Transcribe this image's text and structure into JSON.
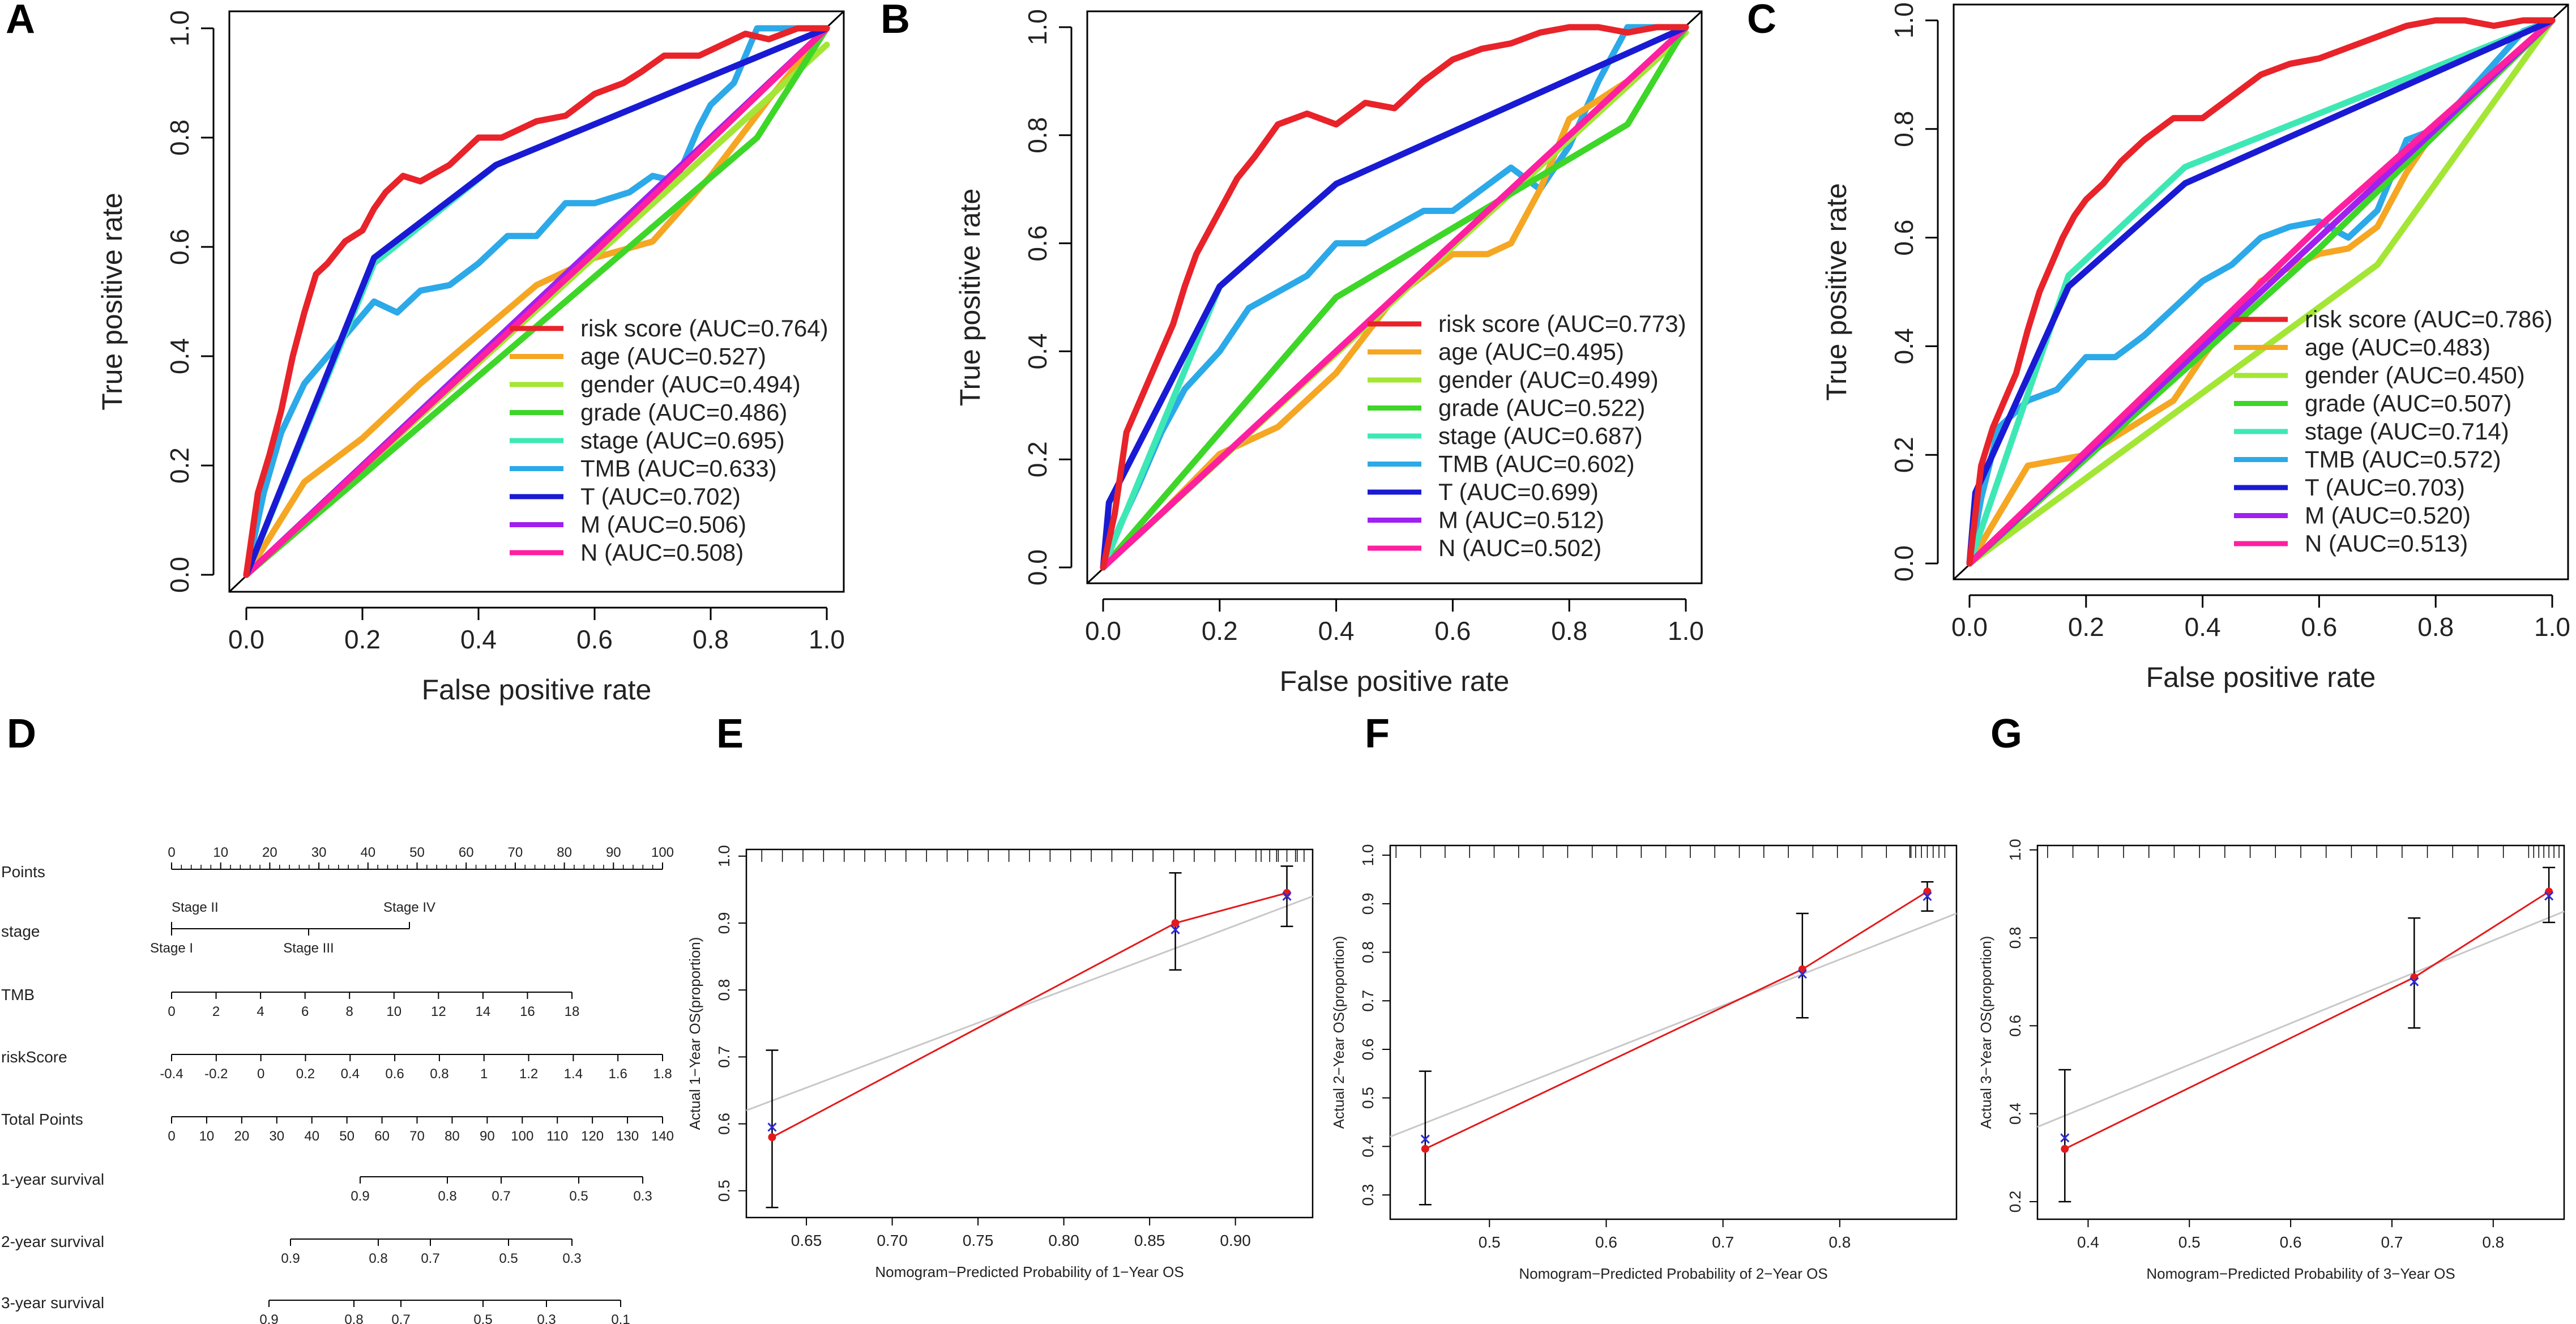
{
  "panel_letters": [
    "A",
    "B",
    "C",
    "D",
    "E",
    "F",
    "G"
  ],
  "colors": {
    "risk score": "#e8232a",
    "age": "#f5a623",
    "gender": "#a3e635",
    "grade": "#3ed628",
    "stage": "#3ee8b5",
    "TMB": "#2ca9e8",
    "T": "#1a1ad4",
    "M": "#a020f0",
    "N": "#ff1fa0",
    "diag": "#000000",
    "cal_red": "#e31a1c",
    "cal_gray": "#c8c8c8",
    "cal_blue": "#2b2bd6"
  },
  "chart_data": [
    {
      "type": "line",
      "panel": "A",
      "xlabel": "False positive rate",
      "ylabel": "True positive rate",
      "xlim": [
        0,
        1
      ],
      "ylim": [
        0,
        1
      ],
      "xticks": [
        "0.0",
        "0.2",
        "0.4",
        "0.6",
        "0.8",
        "1.0"
      ],
      "yticks": [
        "0.0",
        "0.2",
        "0.4",
        "0.6",
        "0.8",
        "1.0"
      ],
      "legend": [
        "risk score (AUC=0.764)",
        "age (AUC=0.527)",
        "gender (AUC=0.494)",
        "grade (AUC=0.486)",
        "stage (AUC=0.695)",
        "TMB (AUC=0.633)",
        "T (AUC=0.702)",
        "M (AUC=0.506)",
        "N (AUC=0.508)"
      ],
      "series": [
        {
          "name": "TMB",
          "x": [
            0,
            0.03,
            0.06,
            0.1,
            0.14,
            0.18,
            0.22,
            0.26,
            0.3,
            0.35,
            0.4,
            0.45,
            0.5,
            0.55,
            0.6,
            0.66,
            0.7,
            0.74,
            0.78,
            0.8,
            0.84,
            0.88,
            0.92,
            0.96,
            1
          ],
          "y": [
            0,
            0.15,
            0.26,
            0.35,
            0.4,
            0.45,
            0.5,
            0.48,
            0.52,
            0.53,
            0.57,
            0.62,
            0.62,
            0.68,
            0.68,
            0.7,
            0.73,
            0.72,
            0.82,
            0.86,
            0.9,
            1,
            1,
            1,
            1
          ]
        },
        {
          "name": "age",
          "x": [
            0,
            0.1,
            0.2,
            0.3,
            0.4,
            0.5,
            0.6,
            0.7,
            0.8,
            0.9,
            1
          ],
          "y": [
            0,
            0.17,
            0.25,
            0.35,
            0.44,
            0.53,
            0.58,
            0.61,
            0.73,
            0.87,
            1
          ]
        },
        {
          "name": "gender",
          "x": [
            0,
            1
          ],
          "y": [
            0,
            0.97
          ]
        },
        {
          "name": "grade",
          "x": [
            0,
            0.88,
            1
          ],
          "y": [
            0,
            0.8,
            1
          ]
        },
        {
          "name": "stage",
          "x": [
            0,
            0.22,
            0.43,
            1
          ],
          "y": [
            0,
            0.57,
            0.75,
            1
          ]
        },
        {
          "name": "M",
          "x": [
            0,
            1
          ],
          "y": [
            0,
            1
          ]
        },
        {
          "name": "N",
          "x": [
            0,
            0.6,
            1
          ],
          "y": [
            0,
            0.59,
            1
          ]
        },
        {
          "name": "T",
          "x": [
            0,
            0.22,
            0.43,
            1
          ],
          "y": [
            0,
            0.58,
            0.75,
            1
          ]
        },
        {
          "name": "risk score",
          "x": [
            0,
            0.02,
            0.04,
            0.06,
            0.08,
            0.1,
            0.12,
            0.14,
            0.17,
            0.2,
            0.22,
            0.24,
            0.27,
            0.3,
            0.35,
            0.4,
            0.44,
            0.5,
            0.55,
            0.6,
            0.65,
            0.68,
            0.72,
            0.78,
            0.82,
            0.86,
            0.9,
            0.95,
            1
          ],
          "y": [
            0,
            0.15,
            0.22,
            0.3,
            0.4,
            0.48,
            0.55,
            0.57,
            0.61,
            0.63,
            0.67,
            0.7,
            0.73,
            0.72,
            0.75,
            0.8,
            0.8,
            0.83,
            0.84,
            0.88,
            0.9,
            0.92,
            0.95,
            0.95,
            0.97,
            0.99,
            0.98,
            1,
            1
          ]
        }
      ]
    },
    {
      "type": "line",
      "panel": "B",
      "xlabel": "False positive rate",
      "ylabel": "True positive rate",
      "xlim": [
        0,
        1
      ],
      "ylim": [
        0,
        1
      ],
      "xticks": [
        "0.0",
        "0.2",
        "0.4",
        "0.6",
        "0.8",
        "1.0"
      ],
      "yticks": [
        "0.0",
        "0.2",
        "0.4",
        "0.6",
        "0.8",
        "1.0"
      ],
      "legend": [
        "risk score (AUC=0.773)",
        "age (AUC=0.495)",
        "gender (AUC=0.499)",
        "grade (AUC=0.522)",
        "stage (AUC=0.687)",
        "TMB (AUC=0.602)",
        "T (AUC=0.699)",
        "M (AUC=0.512)",
        "N (AUC=0.502)"
      ],
      "series": [
        {
          "name": "TMB",
          "x": [
            0,
            0.03,
            0.06,
            0.1,
            0.14,
            0.2,
            0.25,
            0.3,
            0.35,
            0.4,
            0.45,
            0.5,
            0.55,
            0.6,
            0.65,
            0.7,
            0.75,
            0.8,
            0.85,
            0.9,
            0.95,
            1
          ],
          "y": [
            0,
            0.08,
            0.15,
            0.25,
            0.33,
            0.4,
            0.48,
            0.51,
            0.54,
            0.6,
            0.6,
            0.63,
            0.66,
            0.66,
            0.7,
            0.74,
            0.7,
            0.78,
            0.9,
            1,
            1,
            1
          ]
        },
        {
          "name": "age",
          "x": [
            0,
            0.1,
            0.2,
            0.3,
            0.4,
            0.5,
            0.6,
            0.66,
            0.7,
            0.75,
            0.8,
            0.9,
            1
          ],
          "y": [
            0,
            0.1,
            0.21,
            0.26,
            0.36,
            0.5,
            0.58,
            0.58,
            0.6,
            0.7,
            0.83,
            0.9,
            1
          ]
        },
        {
          "name": "gender",
          "x": [
            0,
            1
          ],
          "y": [
            0,
            0.99
          ]
        },
        {
          "name": "grade",
          "x": [
            0,
            0.4,
            0.9,
            1
          ],
          "y": [
            0,
            0.5,
            0.82,
            1
          ]
        },
        {
          "name": "stage",
          "x": [
            0,
            0.2,
            0.4,
            1
          ],
          "y": [
            0,
            0.52,
            0.71,
            1
          ]
        },
        {
          "name": "M",
          "x": [
            0,
            1
          ],
          "y": [
            0,
            1
          ]
        },
        {
          "name": "N",
          "x": [
            0,
            0.6,
            1
          ],
          "y": [
            0,
            0.6,
            1
          ]
        },
        {
          "name": "T",
          "x": [
            0,
            0.01,
            0.2,
            0.4,
            1
          ],
          "y": [
            0,
            0.12,
            0.52,
            0.71,
            1
          ]
        },
        {
          "name": "risk score",
          "x": [
            0,
            0.02,
            0.04,
            0.06,
            0.08,
            0.1,
            0.12,
            0.14,
            0.16,
            0.18,
            0.2,
            0.23,
            0.26,
            0.3,
            0.35,
            0.4,
            0.45,
            0.5,
            0.55,
            0.6,
            0.65,
            0.7,
            0.75,
            0.8,
            0.85,
            0.9,
            0.95,
            1
          ],
          "y": [
            0,
            0.1,
            0.25,
            0.3,
            0.35,
            0.4,
            0.45,
            0.52,
            0.58,
            0.62,
            0.66,
            0.72,
            0.76,
            0.82,
            0.84,
            0.82,
            0.86,
            0.85,
            0.9,
            0.94,
            0.96,
            0.97,
            0.99,
            1,
            1,
            0.99,
            1,
            1
          ]
        }
      ]
    },
    {
      "type": "line",
      "panel": "C",
      "xlabel": "False positive rate",
      "ylabel": "True positive rate",
      "xlim": [
        0,
        1
      ],
      "ylim": [
        0,
        1
      ],
      "xticks": [
        "0.0",
        "0.2",
        "0.4",
        "0.6",
        "0.8",
        "1.0"
      ],
      "yticks": [
        "0.0",
        "0.2",
        "0.4",
        "0.6",
        "0.8",
        "1.0"
      ],
      "legend": [
        "risk score (AUC=0.786)",
        "age (AUC=0.483)",
        "gender (AUC=0.450)",
        "grade (AUC=0.507)",
        "stage (AUC=0.714)",
        "TMB (AUC=0.572)",
        "T (AUC=0.703)",
        "M (AUC=0.520)",
        "N (AUC=0.513)"
      ],
      "series": [
        {
          "name": "TMB",
          "x": [
            0,
            0.02,
            0.05,
            0.1,
            0.15,
            0.2,
            0.25,
            0.3,
            0.35,
            0.4,
            0.45,
            0.5,
            0.55,
            0.6,
            0.65,
            0.7,
            0.75,
            0.8,
            0.85,
            0.9,
            0.95,
            1
          ],
          "y": [
            0,
            0.12,
            0.25,
            0.3,
            0.32,
            0.38,
            0.38,
            0.42,
            0.47,
            0.52,
            0.55,
            0.6,
            0.62,
            0.63,
            0.6,
            0.65,
            0.78,
            0.8,
            0.86,
            0.92,
            0.98,
            1
          ]
        },
        {
          "name": "age",
          "x": [
            0,
            0.1,
            0.2,
            0.35,
            0.4,
            0.5,
            0.6,
            0.65,
            0.7,
            0.75,
            0.8,
            0.9,
            1
          ],
          "y": [
            0,
            0.18,
            0.2,
            0.3,
            0.38,
            0.52,
            0.57,
            0.58,
            0.62,
            0.72,
            0.8,
            0.9,
            1
          ]
        },
        {
          "name": "gender",
          "x": [
            0,
            0.7,
            1
          ],
          "y": [
            0,
            0.55,
            1
          ]
        },
        {
          "name": "grade",
          "x": [
            0,
            0.6,
            1
          ],
          "y": [
            0,
            0.58,
            1
          ]
        },
        {
          "name": "stage",
          "x": [
            0,
            0.17,
            0.37,
            1
          ],
          "y": [
            0,
            0.53,
            0.73,
            1
          ]
        },
        {
          "name": "M",
          "x": [
            0,
            1
          ],
          "y": [
            0,
            1
          ]
        },
        {
          "name": "N",
          "x": [
            0,
            0.6,
            1
          ],
          "y": [
            0,
            0.62,
            1
          ]
        },
        {
          "name": "T",
          "x": [
            0,
            0.01,
            0.17,
            0.37,
            1
          ],
          "y": [
            0,
            0.13,
            0.51,
            0.7,
            1
          ]
        },
        {
          "name": "risk score",
          "x": [
            0,
            0.02,
            0.04,
            0.06,
            0.08,
            0.1,
            0.12,
            0.14,
            0.16,
            0.18,
            0.2,
            0.23,
            0.26,
            0.3,
            0.35,
            0.4,
            0.45,
            0.5,
            0.55,
            0.6,
            0.65,
            0.7,
            0.75,
            0.8,
            0.85,
            0.9,
            0.95,
            1
          ],
          "y": [
            0,
            0.18,
            0.25,
            0.3,
            0.35,
            0.43,
            0.5,
            0.55,
            0.6,
            0.64,
            0.67,
            0.7,
            0.74,
            0.78,
            0.82,
            0.82,
            0.86,
            0.9,
            0.92,
            0.93,
            0.95,
            0.97,
            0.99,
            1,
            1,
            0.99,
            1,
            1
          ]
        }
      ]
    },
    {
      "type": "scatter",
      "panel": "E",
      "xlabel": "Nomogram−Predicted Probability of 1−Year OS",
      "ylabel": "Actual 1−Year OS(proportion)",
      "xlim": [
        0.615,
        0.945
      ],
      "ylim": [
        0.46,
        1.01
      ],
      "xticks": [
        "0.65",
        "0.70",
        "0.75",
        "0.80",
        "0.85",
        "0.90"
      ],
      "xtick_values": [
        0.65,
        0.7,
        0.75,
        0.8,
        0.85,
        0.9
      ],
      "yticks": [
        "0.5",
        "0.6",
        "0.7",
        "0.8",
        "0.9",
        "1.0"
      ],
      "ytick_values": [
        0.5,
        0.6,
        0.7,
        0.8,
        0.9,
        1.0
      ],
      "points": [
        {
          "x": 0.63,
          "y": 0.58,
          "lo": 0.475,
          "hi": 0.71
        },
        {
          "x": 0.865,
          "y": 0.9,
          "lo": 0.83,
          "hi": 0.975
        },
        {
          "x": 0.93,
          "y": 0.945,
          "lo": 0.895,
          "hi": 0.985
        }
      ],
      "blue_x": [
        {
          "x": 0.63,
          "y": 0.595
        },
        {
          "x": 0.865,
          "y": 0.89
        },
        {
          "x": 0.93,
          "y": 0.94
        }
      ]
    },
    {
      "type": "scatter",
      "panel": "F",
      "xlabel": "Nomogram−Predicted Probability of 2−Year OS",
      "ylabel": "Actual 2−Year OS(proportion)",
      "xlim": [
        0.415,
        0.9
      ],
      "ylim": [
        0.25,
        1.02
      ],
      "xticks": [
        "0.5",
        "0.6",
        "0.7",
        "0.8"
      ],
      "xtick_values": [
        0.5,
        0.6,
        0.7,
        0.8
      ],
      "yticks": [
        "0.3",
        "0.4",
        "0.5",
        "0.6",
        "0.7",
        "0.8",
        "0.9",
        "1.0"
      ],
      "ytick_values": [
        0.3,
        0.4,
        0.5,
        0.6,
        0.7,
        0.8,
        0.9,
        1.0
      ],
      "points": [
        {
          "x": 0.445,
          "y": 0.395,
          "lo": 0.28,
          "hi": 0.555
        },
        {
          "x": 0.768,
          "y": 0.765,
          "lo": 0.665,
          "hi": 0.88
        },
        {
          "x": 0.875,
          "y": 0.925,
          "lo": 0.885,
          "hi": 0.945
        }
      ],
      "blue_x": [
        {
          "x": 0.445,
          "y": 0.415
        },
        {
          "x": 0.768,
          "y": 0.755
        },
        {
          "x": 0.875,
          "y": 0.915
        }
      ]
    },
    {
      "type": "scatter",
      "panel": "G",
      "xlabel": "Nomogram−Predicted Probability of 3−Year OS",
      "ylabel": "Actual 3−Year OS(proportion)",
      "xlim": [
        0.35,
        0.87
      ],
      "ylim": [
        0.16,
        1.01
      ],
      "xticks": [
        "0.4",
        "0.5",
        "0.6",
        "0.7",
        "0.8"
      ],
      "xtick_values": [
        0.4,
        0.5,
        0.6,
        0.7,
        0.8
      ],
      "yticks": [
        "0.2",
        "0.4",
        "0.6",
        "0.8",
        "1.0"
      ],
      "ytick_values": [
        0.2,
        0.4,
        0.6,
        0.8,
        1.0
      ],
      "points": [
        {
          "x": 0.377,
          "y": 0.32,
          "lo": 0.2,
          "hi": 0.5
        },
        {
          "x": 0.722,
          "y": 0.71,
          "lo": 0.595,
          "hi": 0.845
        },
        {
          "x": 0.855,
          "y": 0.905,
          "lo": 0.835,
          "hi": 0.96
        }
      ],
      "blue_x": [
        {
          "x": 0.377,
          "y": 0.345
        },
        {
          "x": 0.722,
          "y": 0.7
        },
        {
          "x": 0.855,
          "y": 0.895
        }
      ]
    }
  ],
  "nomogram": {
    "panel": "D",
    "rows": [
      {
        "label": "Points",
        "ticks": [
          "0",
          "10",
          "20",
          "30",
          "40",
          "50",
          "60",
          "70",
          "80",
          "90",
          "100"
        ]
      },
      {
        "label": "stage",
        "upper": [
          "Stage II",
          "Stage IV"
        ],
        "lower": [
          "Stage I",
          "Stage III"
        ]
      },
      {
        "label": "TMB",
        "ticks": [
          "0",
          "2",
          "4",
          "6",
          "8",
          "10",
          "12",
          "14",
          "16",
          "18"
        ]
      },
      {
        "label": "riskScore",
        "ticks": [
          "-0.4",
          "-0.2",
          "0",
          "0.2",
          "0.4",
          "0.6",
          "0.8",
          "1",
          "1.2",
          "1.4",
          "1.6",
          "1.8"
        ]
      },
      {
        "label": "Total Points",
        "ticks": [
          "0",
          "10",
          "20",
          "30",
          "40",
          "50",
          "60",
          "70",
          "80",
          "90",
          "100",
          "110",
          "120",
          "130",
          "140"
        ]
      },
      {
        "label": "1-year survival",
        "ticks": [
          "0.9",
          "0.8",
          "0.7",
          "0.5",
          "0.3"
        ]
      },
      {
        "label": "2-year survival",
        "ticks": [
          "0.9",
          "0.8",
          "0.7",
          "0.5",
          "0.3"
        ]
      },
      {
        "label": "3-year survival",
        "ticks": [
          "0.9",
          "0.8",
          "0.7",
          "0.5",
          "0.3",
          "0.1"
        ]
      }
    ]
  }
}
